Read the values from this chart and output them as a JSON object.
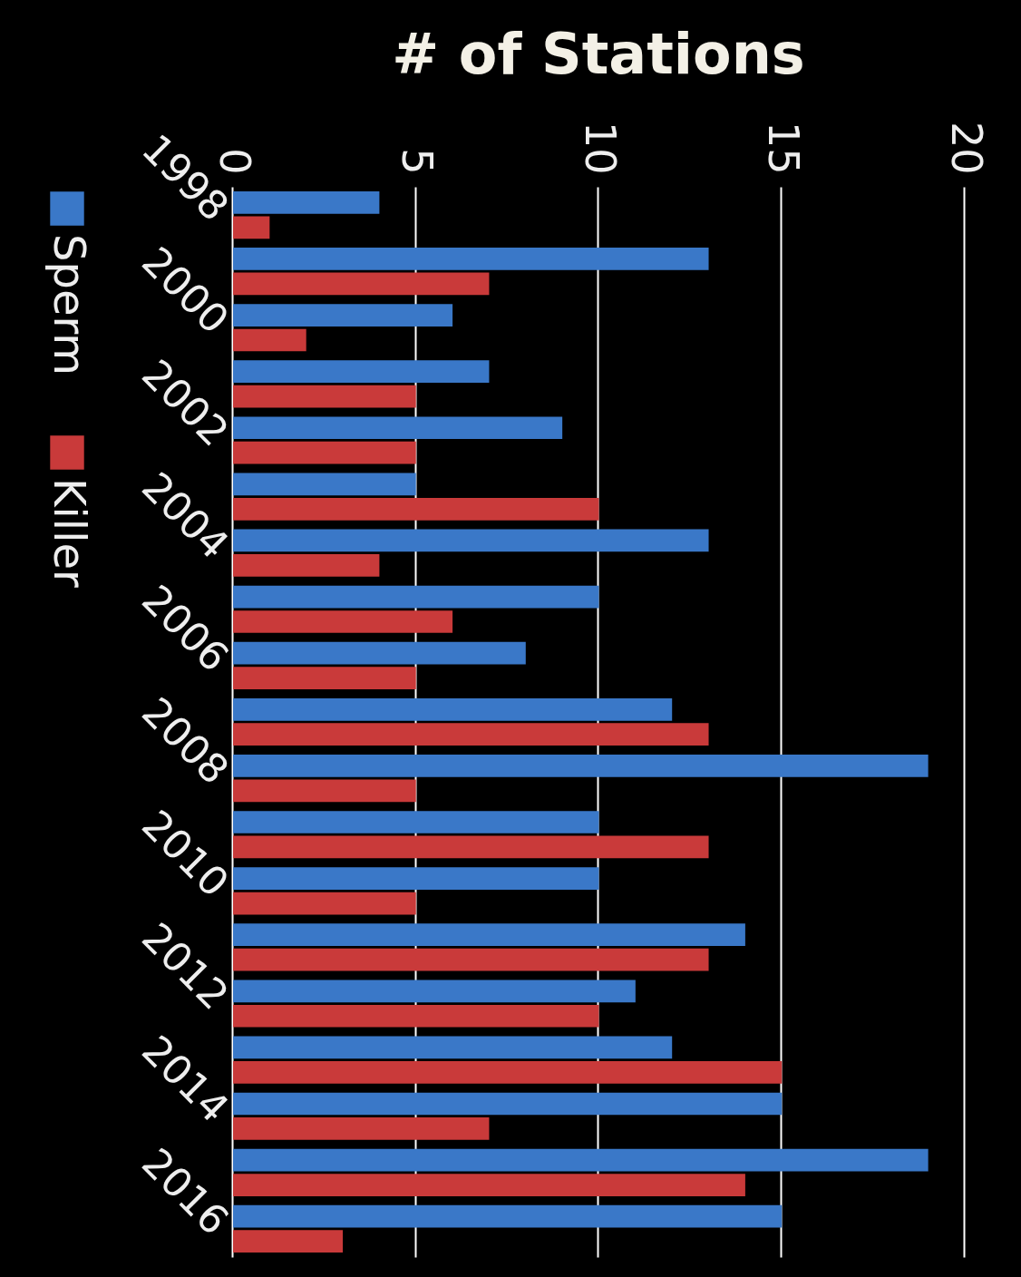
{
  "chart_data": {
    "type": "bar",
    "orientation": "horizontal",
    "xlabel": "# of Stations",
    "categories": [
      "1998",
      null,
      "2000",
      null,
      "2002",
      null,
      "2004",
      null,
      "2006",
      null,
      "2008",
      null,
      "2010",
      null,
      "2012",
      null,
      "2014",
      null,
      "2016"
    ],
    "series": [
      {
        "name": "Sperm",
        "color": "#3a78c8",
        "values": [
          4,
          13,
          6,
          7,
          9,
          5,
          13,
          10,
          8,
          12,
          19,
          10,
          10,
          14,
          11,
          12,
          15,
          19,
          15
        ]
      },
      {
        "name": "Killer",
        "color": "#c93a3a",
        "values": [
          1,
          7,
          2,
          5,
          5,
          10,
          4,
          6,
          5,
          13,
          5,
          13,
          5,
          13,
          10,
          15,
          7,
          14,
          3
        ]
      }
    ],
    "xlim": [
      0,
      20
    ],
    "xticks": [
      0,
      5,
      10,
      15,
      20
    ],
    "grid": "x",
    "legend": "left"
  }
}
